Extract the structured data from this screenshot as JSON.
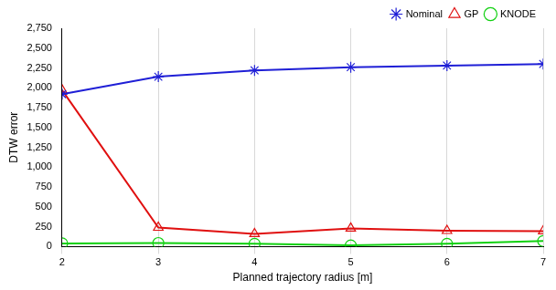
{
  "chart_data": {
    "type": "line",
    "x_label": "Planned trajectory radius [m]",
    "y_label": "DTW error",
    "x": [
      2,
      3,
      4,
      5,
      6,
      7
    ],
    "series": [
      {
        "name": "Nominal",
        "color": "#1f1fd6",
        "marker": "star",
        "values": [
          1920,
          2140,
          2220,
          2260,
          2280,
          2300
        ]
      },
      {
        "name": "GP",
        "color": "#e01010",
        "marker": "triangle",
        "values": [
          1970,
          240,
          160,
          230,
          200,
          195
        ]
      },
      {
        "name": "KNODE",
        "color": "#10d010",
        "marker": "circle",
        "values": [
          40,
          45,
          35,
          15,
          35,
          70
        ]
      }
    ],
    "xlim": [
      2,
      7
    ],
    "xticks": [
      2,
      3,
      4,
      5,
      6,
      7
    ],
    "ylim": [
      0,
      2750
    ],
    "yticks": [
      0,
      250,
      500,
      750,
      1000,
      1250,
      1500,
      1750,
      2000,
      2250,
      2500,
      2750
    ],
    "grid": "x",
    "legend": "upper right"
  }
}
